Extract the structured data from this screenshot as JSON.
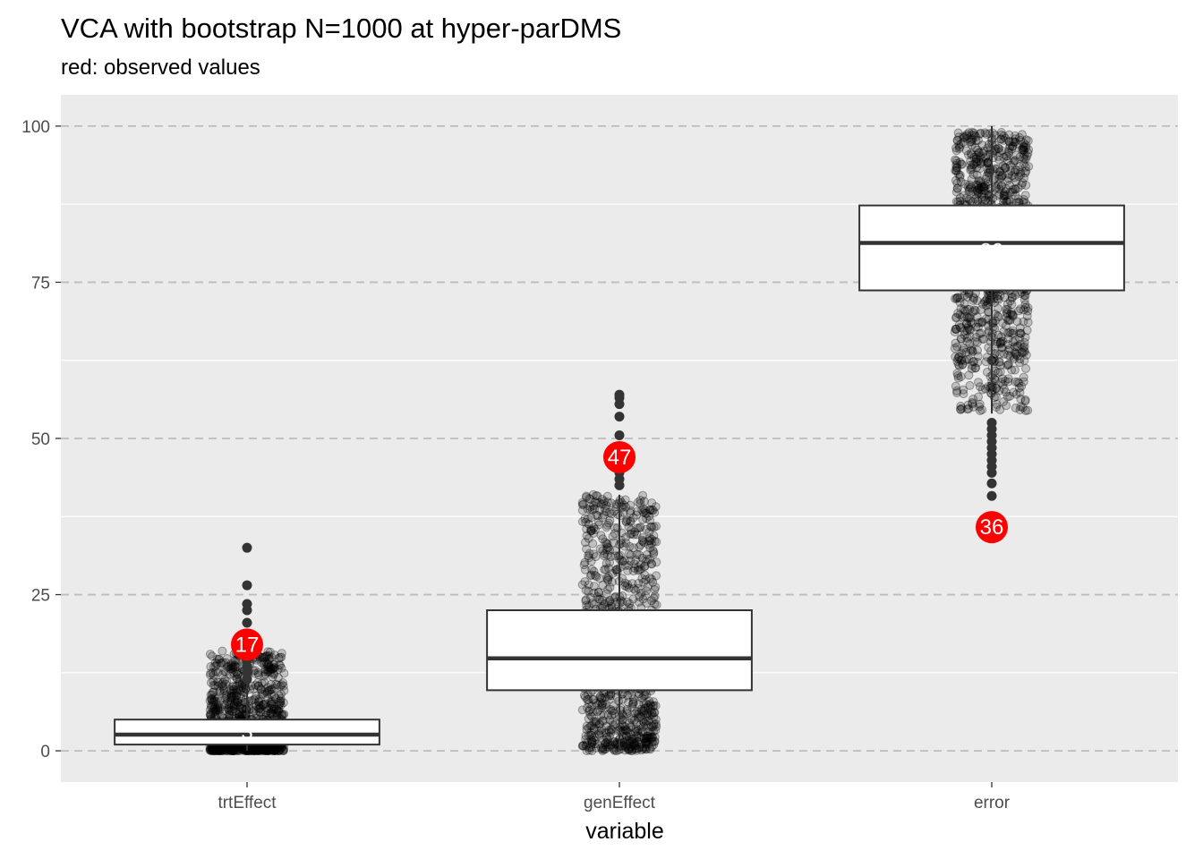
{
  "chart_data": {
    "type": "box",
    "title": "VCA with bootstrap N=1000 at hyper-parDMS",
    "subtitle": "red: observed values",
    "xlabel": "variable",
    "ylabel": "",
    "ylim": [
      -5,
      105
    ],
    "y_ticks": [
      "0",
      "25",
      "50",
      "75",
      "100"
    ],
    "grid": true,
    "categories": [
      "trtEffect",
      "genEffect",
      "error"
    ],
    "boxes": [
      {
        "category": "trtEffect",
        "whisker_low": 0,
        "q1": 1,
        "median": 2.6,
        "q3": 5,
        "whisker_high": 11,
        "mean_label": "3",
        "outliers": [
          11.5,
          12.5,
          13.5,
          14.5,
          15.5,
          16.5,
          17.5,
          20.5,
          22.5,
          23.5,
          26.5,
          32.5
        ],
        "jitter_min": 0,
        "jitter_max": 16,
        "jitter_skew": 2.2,
        "n_points": 950,
        "observed": 17,
        "observed_label": "17"
      },
      {
        "category": "genEffect",
        "whisker_low": 0,
        "q1": 9.7,
        "median": 14.8,
        "q3": 22.5,
        "whisker_high": 41,
        "mean_label": "17",
        "outliers": [
          42.5,
          43.5,
          44.5,
          46,
          47.5,
          48.5,
          50.5,
          53.5,
          55.5,
          56.5,
          57
        ],
        "jitter_min": 0,
        "jitter_max": 41,
        "jitter_skew": 1.4,
        "n_points": 950,
        "observed": 47,
        "observed_label": "47"
      },
      {
        "category": "error",
        "whisker_low": 54,
        "q1": 73.7,
        "median": 81.3,
        "q3": 87.3,
        "whisker_high": 100,
        "mean_label": "80",
        "outliers": [
          40.8,
          42.8,
          44.5,
          45.5,
          46.5,
          47.5,
          48.5,
          49.5,
          50.5,
          51.5,
          52.5
        ],
        "jitter_min": 54,
        "jitter_max": 99,
        "jitter_skew": 0.8,
        "n_points": 950,
        "observed": 35.8,
        "observed_label": "36"
      }
    ],
    "colors": {
      "panel": "#ebebeb",
      "grid_minor": "#ffffff",
      "grid_dashed": "#bdbdbd",
      "box_fill": "#ffffff",
      "box_line": "#333333",
      "jitter": "#000000",
      "observed": "#ff0000"
    }
  }
}
